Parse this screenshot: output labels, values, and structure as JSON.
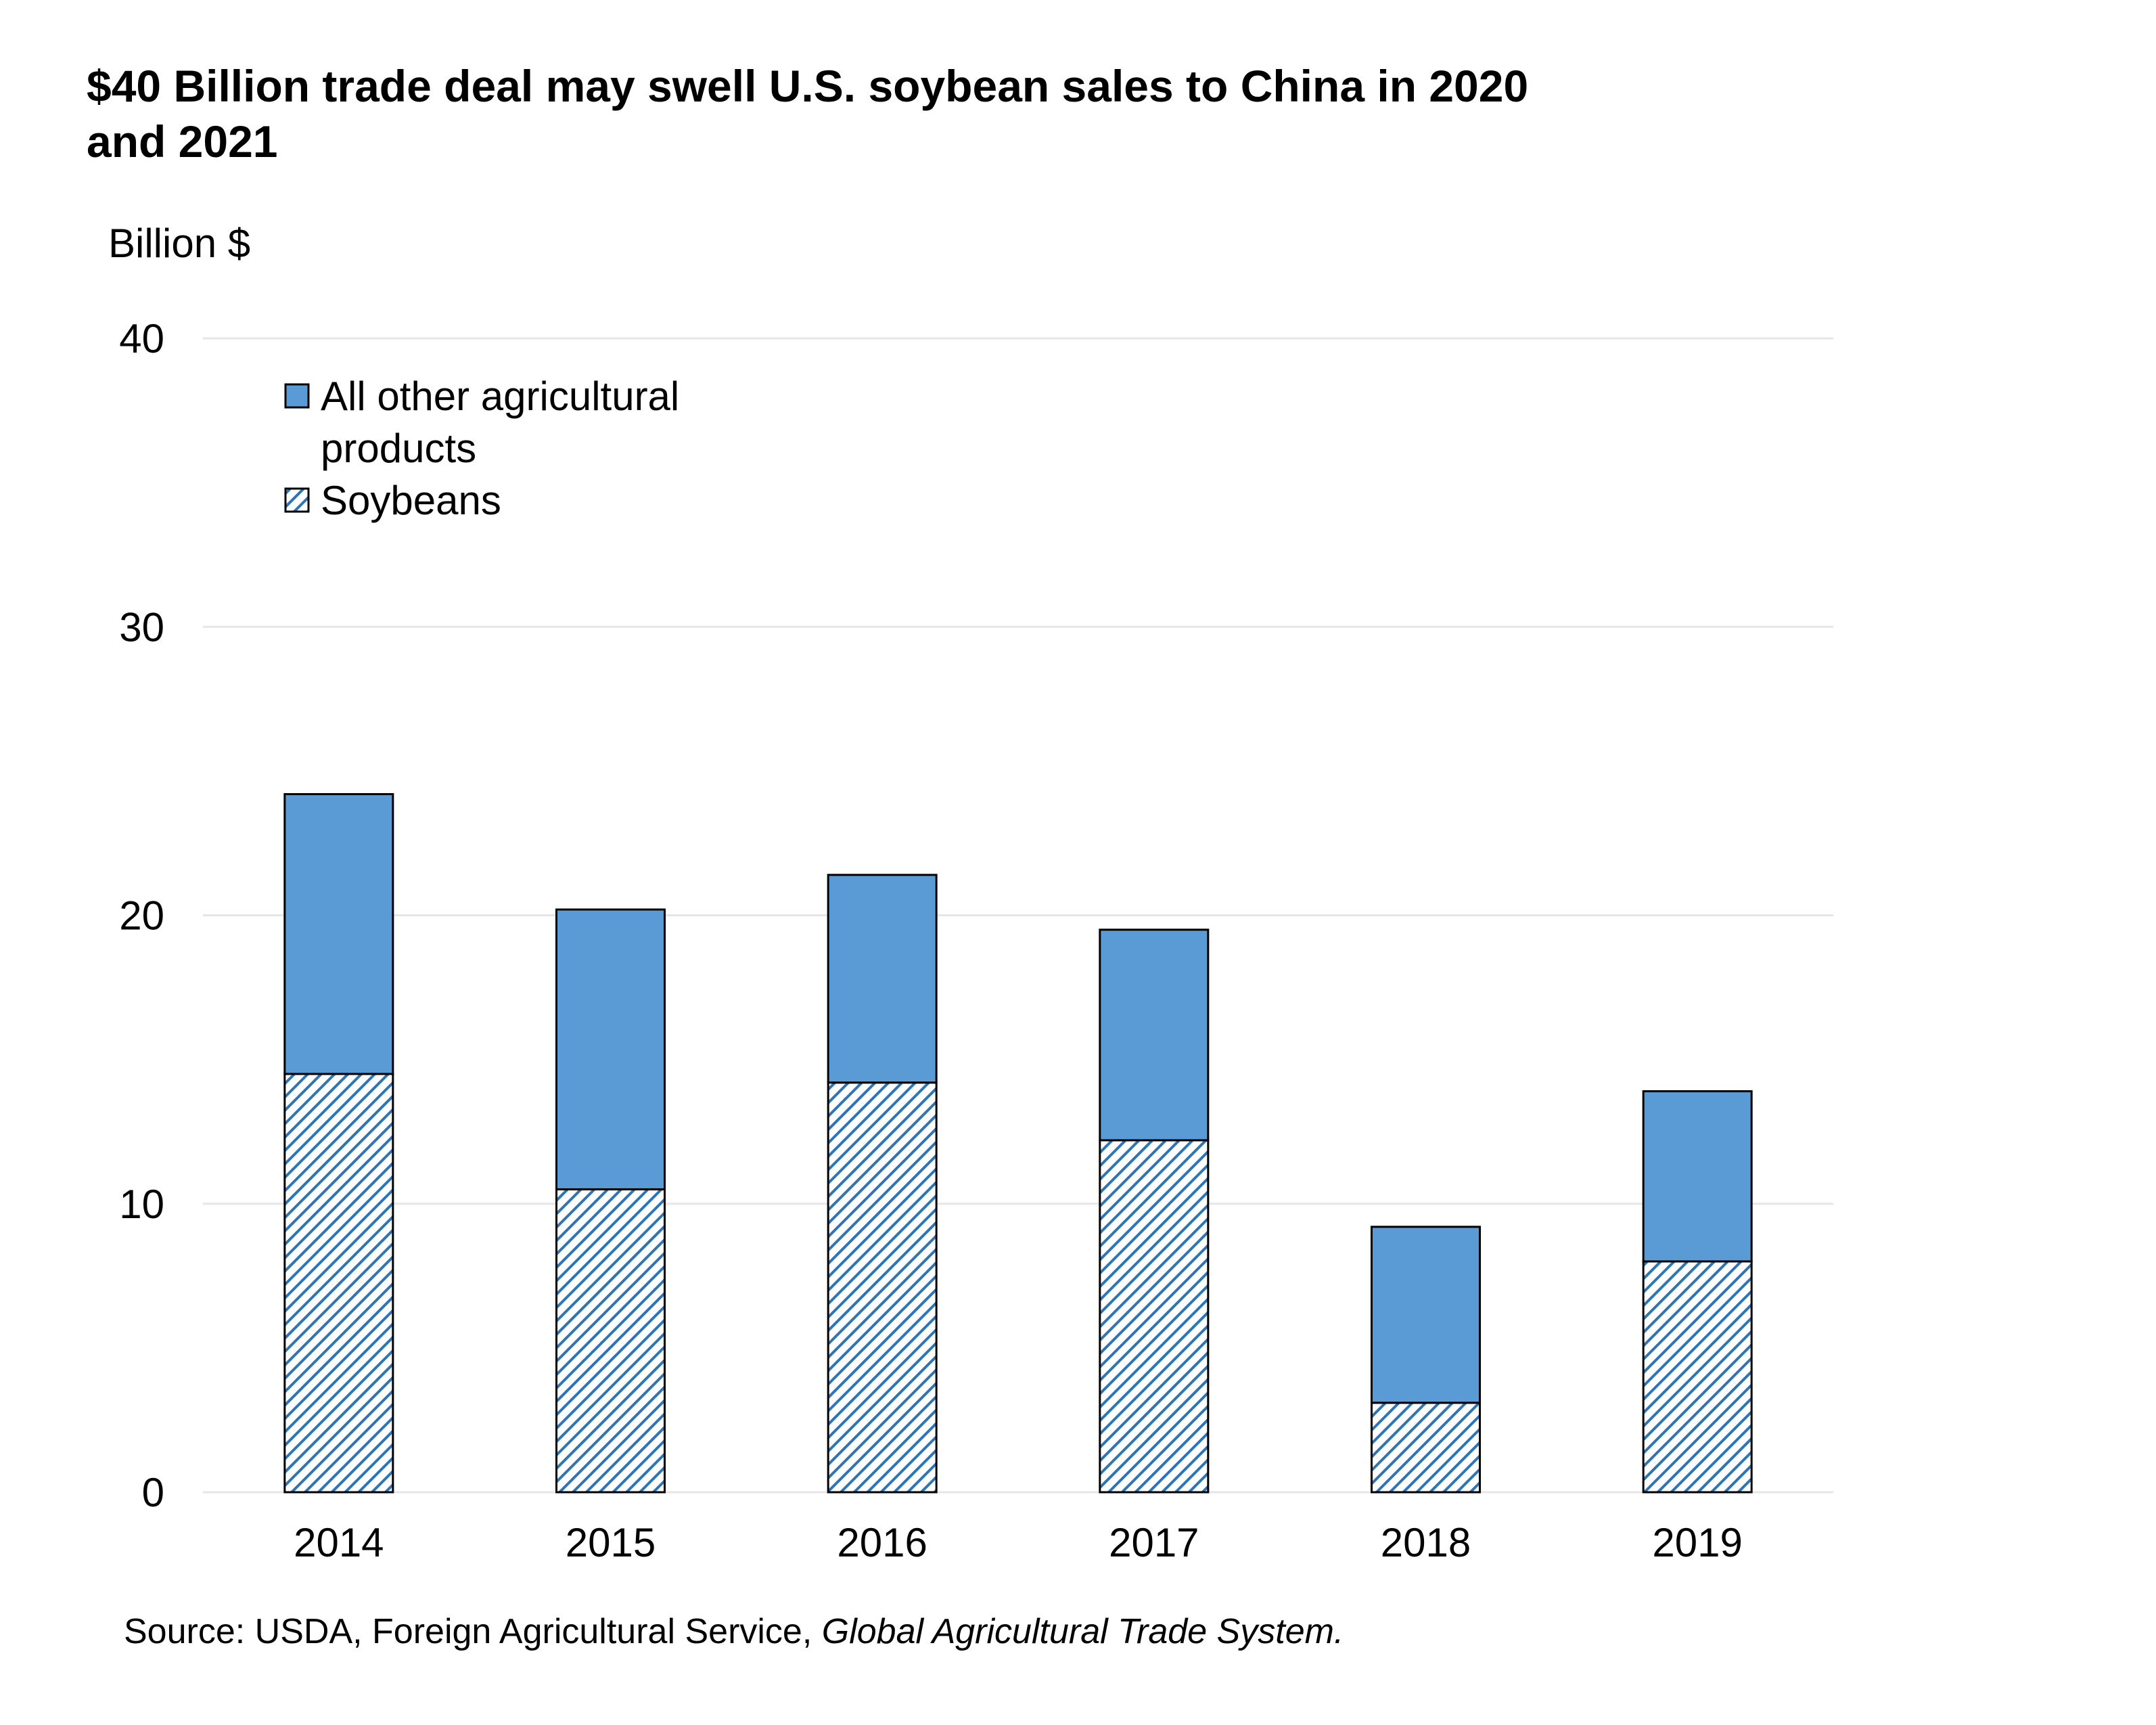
{
  "chart_data": {
    "type": "bar",
    "stacked": true,
    "title": "$40 Billion trade deal may swell U.S. soybean sales to China in 2020 and 2021",
    "title_lines": [
      "$40 Billion trade deal may swell U.S. soybean sales to China in 2020",
      "and 2021"
    ],
    "ylabel": "Billion $",
    "xlabel": "",
    "ylim": [
      0,
      40
    ],
    "yticks": [
      0,
      10,
      20,
      30,
      40
    ],
    "grid": true,
    "categories": [
      "2014",
      "2015",
      "2016",
      "2017",
      "2018",
      "2019"
    ],
    "series": [
      {
        "name": "Soybeans",
        "values": [
          14.5,
          10.5,
          14.2,
          12.2,
          3.1,
          8.0
        ],
        "pattern": "hatch"
      },
      {
        "name": "All other agricultural products",
        "values": [
          9.7,
          9.7,
          7.2,
          7.3,
          6.1,
          5.9
        ],
        "pattern": "solid"
      }
    ],
    "legend": {
      "position": "top-left",
      "entries": [
        {
          "series": "All other agricultural products",
          "lines": [
            "All other agricultural",
            "products"
          ]
        },
        {
          "series": "Soybeans",
          "lines": [
            "Soybeans"
          ]
        }
      ]
    },
    "colors": {
      "other": "#5b9bd5",
      "soy_hatch": "#2e75b6",
      "soy_bg": "#ffffff",
      "outline": "#000000",
      "grid": "#e6e6e6"
    }
  },
  "source": {
    "prefix": "Source: USDA, Foreign Agricultural Service, ",
    "italic": "Global Agricultural Trade System."
  }
}
